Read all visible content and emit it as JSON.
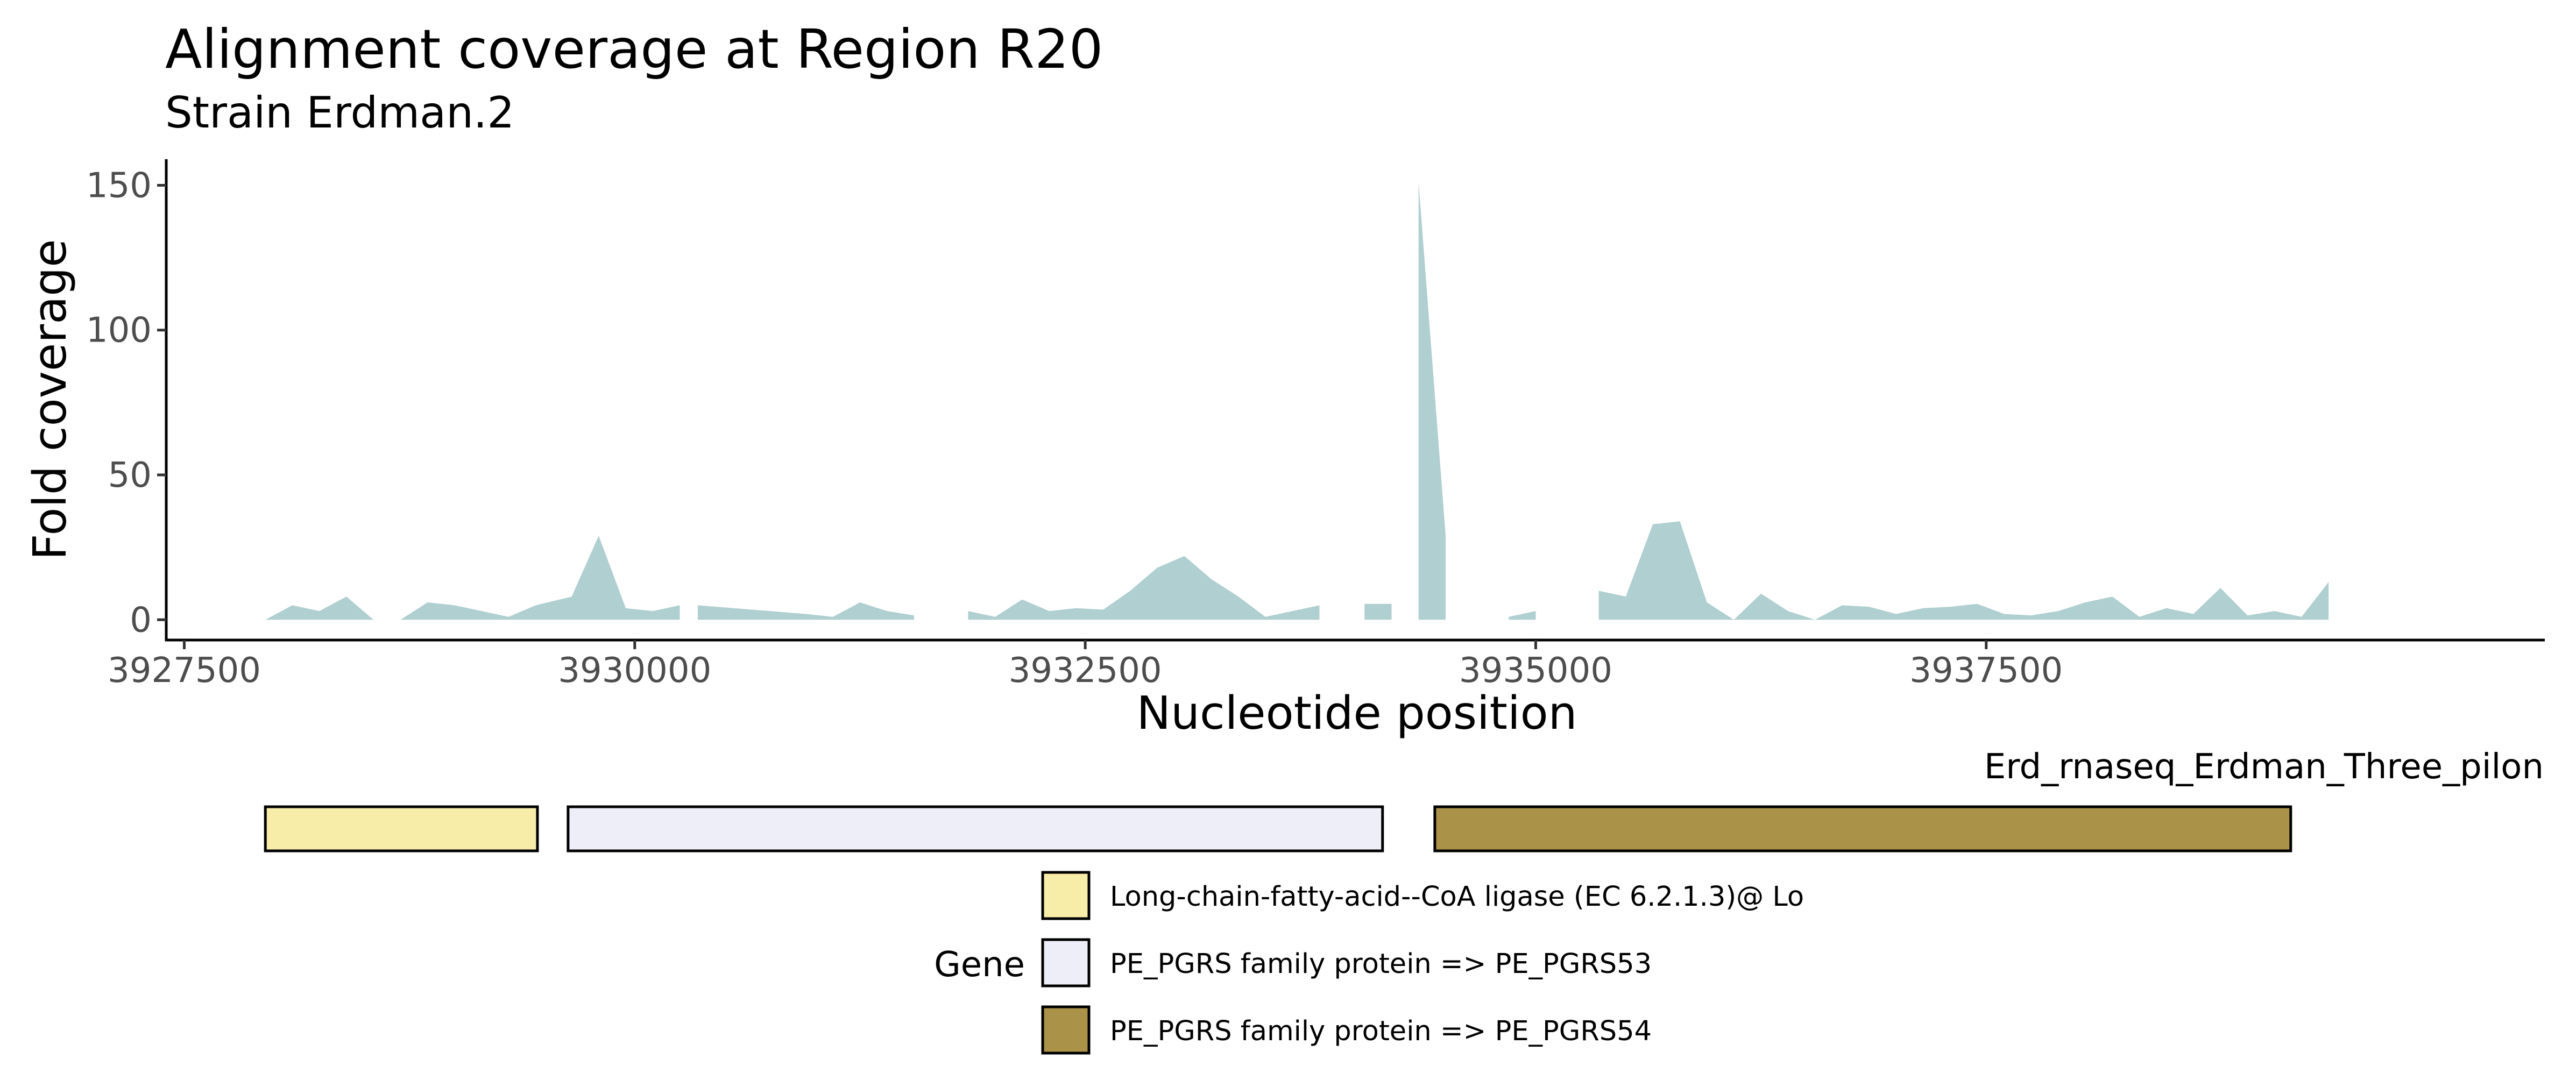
{
  "chart_data": {
    "type": "area",
    "title": "Alignment coverage at Region R20",
    "subtitle": "Strain Erdman.2",
    "xlabel": "Nucleotide position",
    "ylabel": "Fold coverage",
    "xlim": [
      3927400,
      3940600
    ],
    "ylim": [
      -7,
      159
    ],
    "x_ticks": [
      3927500,
      3930000,
      3932500,
      3935000,
      3937500
    ],
    "x_tick_labels": [
      "3927500",
      "3930000",
      "3932500",
      "3935000",
      "3937500"
    ],
    "y_ticks": [
      0,
      50,
      100,
      150
    ],
    "y_tick_labels": [
      "0",
      "50",
      "100",
      "150"
    ],
    "grid": false,
    "fill_color": "#b0cfd0",
    "series": [
      {
        "segments": [
          [
            [
              3927950,
              0
            ],
            [
              3928100,
              5
            ],
            [
              3928250,
              3
            ],
            [
              3928400,
              8
            ],
            [
              3928550,
              0
            ],
            [
              3928700,
              0
            ],
            [
              3928850,
              6
            ],
            [
              3929000,
              5
            ],
            [
              3929150,
              3
            ],
            [
              3929300,
              1
            ],
            [
              3929450,
              5
            ],
            [
              3929650,
              8
            ],
            [
              3929800,
              29
            ],
            [
              3929950,
              4
            ],
            [
              3930100,
              3
            ],
            [
              3930250,
              5
            ],
            [
              3930250,
              0
            ]
          ],
          [
            [
              3930350,
              0
            ],
            [
              3930350,
              5
            ],
            [
              3930550,
              4
            ],
            [
              3930750,
              3
            ],
            [
              3930950,
              2
            ],
            [
              3931100,
              1
            ],
            [
              3931250,
              6
            ],
            [
              3931400,
              3
            ],
            [
              3931550,
              1.5
            ],
            [
              3931550,
              0
            ]
          ],
          [
            [
              3931850,
              0
            ],
            [
              3931850,
              3
            ],
            [
              3932000,
              1
            ],
            [
              3932150,
              7
            ],
            [
              3932300,
              3
            ],
            [
              3932450,
              4
            ],
            [
              3932600,
              3.5
            ],
            [
              3932750,
              10
            ],
            [
              3932900,
              18
            ],
            [
              3933050,
              22
            ],
            [
              3933200,
              14
            ],
            [
              3933350,
              8
            ],
            [
              3933500,
              1
            ],
            [
              3933650,
              3
            ],
            [
              3933800,
              5
            ],
            [
              3933800,
              0
            ]
          ],
          [
            [
              3934050,
              0
            ],
            [
              3934050,
              5.5
            ],
            [
              3934200,
              5.5
            ],
            [
              3934200,
              0
            ]
          ],
          [
            [
              3934350,
              0
            ],
            [
              3934350,
              151
            ],
            [
              3934500,
              29
            ],
            [
              3934500,
              0
            ]
          ],
          [
            [
              3934850,
              0
            ],
            [
              3934850,
              1
            ],
            [
              3935000,
              3
            ],
            [
              3935000,
              0
            ]
          ],
          [
            [
              3935350,
              0
            ],
            [
              3935350,
              10
            ],
            [
              3935500,
              8
            ],
            [
              3935650,
              33
            ],
            [
              3935800,
              34
            ],
            [
              3935950,
              6
            ],
            [
              3936100,
              0
            ],
            [
              3936250,
              9
            ],
            [
              3936400,
              3
            ],
            [
              3936550,
              0
            ],
            [
              3936700,
              5
            ],
            [
              3936850,
              4.5
            ],
            [
              3937000,
              2
            ],
            [
              3937150,
              4
            ],
            [
              3937300,
              4.5
            ],
            [
              3937450,
              5.5
            ],
            [
              3937600,
              2
            ],
            [
              3937750,
              1.5
            ],
            [
              3937900,
              3
            ],
            [
              3938050,
              6
            ],
            [
              3938200,
              8
            ],
            [
              3938350,
              1
            ],
            [
              3938500,
              4
            ],
            [
              3938650,
              2
            ],
            [
              3938800,
              11
            ],
            [
              3938950,
              1.5
            ],
            [
              3939100,
              3
            ],
            [
              3939250,
              1
            ],
            [
              3939400,
              13
            ],
            [
              3939400,
              0
            ]
          ]
        ]
      }
    ],
    "gene_track": {
      "label": "Erd_rnaseq_Erdman_Three_pilon",
      "genes": [
        {
          "start": 3927950,
          "end": 3929460,
          "color": "#f7eda8",
          "legend_index": 0
        },
        {
          "start": 3929630,
          "end": 3934150,
          "color": "#eeeef8",
          "legend_index": 1
        },
        {
          "start": 3934440,
          "end": 3939190,
          "color": "#aa9248",
          "legend_index": 2
        }
      ]
    },
    "legend": {
      "title": "Gene",
      "position": "bottom",
      "entries": [
        {
          "label": "Long-chain-fatty-acid--CoA ligase (EC 6.2.1.3)@ Lo",
          "color": "#f7eda8"
        },
        {
          "label": "PE_PGRS family protein => PE_PGRS53",
          "color": "#eeeef8"
        },
        {
          "label": "PE_PGRS family protein => PE_PGRS54",
          "color": "#aa9248"
        }
      ]
    }
  }
}
